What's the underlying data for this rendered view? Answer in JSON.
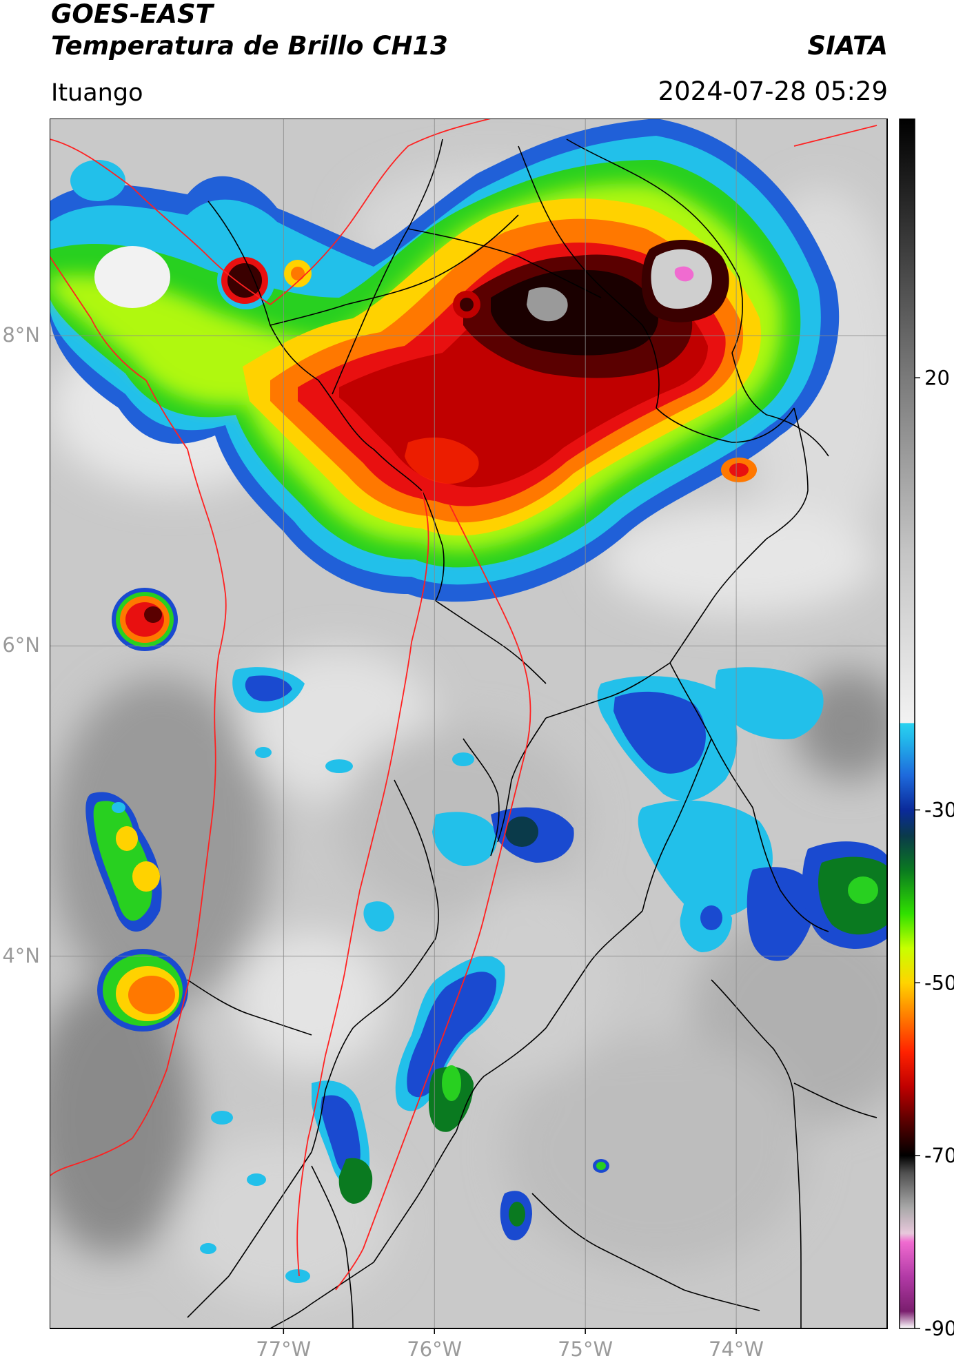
{
  "header": {
    "title_line1": "GOES-EAST",
    "title_line2": "Temperatura de Brillo CH13",
    "brand": "SIATA",
    "location": "Ituango",
    "timestamp": "2024-07-28 05:29"
  },
  "map": {
    "extent": {
      "lon_min": -78.55,
      "lon_max": -73.0,
      "lat_min": 1.6,
      "lat_max": 9.4
    },
    "grid_lons": [
      -77,
      -76,
      -75,
      -74
    ],
    "grid_lats": [
      4,
      6,
      8
    ],
    "lon_labels": [
      "77°W",
      "76°W",
      "75°W",
      "74°W"
    ],
    "lat_labels": [
      "4°N",
      "6°N",
      "8°N"
    ],
    "boundary_colors": {
      "country_and_coast": "#ff2020",
      "departments": "#000000"
    }
  },
  "colorbar": {
    "min": -90,
    "max": 50,
    "tick_values": [
      20,
      -30,
      -50,
      -70,
      -90
    ],
    "tick_labels": [
      "20",
      "-30",
      "-50",
      "-70",
      "-90"
    ],
    "stops": [
      {
        "v": -90,
        "color": "#ffffff"
      },
      {
        "v": -88,
        "color": "#7a1e6e"
      },
      {
        "v": -84,
        "color": "#b23aa6"
      },
      {
        "v": -80,
        "color": "#f06bd0"
      },
      {
        "v": -79,
        "color": "#e8c8dc"
      },
      {
        "v": -76,
        "color": "#a8a8a8"
      },
      {
        "v": -72,
        "color": "#505050"
      },
      {
        "v": -70,
        "color": "#000000"
      },
      {
        "v": -66,
        "color": "#5a0000"
      },
      {
        "v": -62,
        "color": "#c00000"
      },
      {
        "v": -58,
        "color": "#ff2200"
      },
      {
        "v": -54,
        "color": "#ff7a00"
      },
      {
        "v": -50,
        "color": "#ffd400"
      },
      {
        "v": -46,
        "color": "#c8ff00"
      },
      {
        "v": -42,
        "color": "#30e000"
      },
      {
        "v": -37,
        "color": "#0a7a20"
      },
      {
        "v": -33,
        "color": "#0a3a4a"
      },
      {
        "v": -30,
        "color": "#0a2a9a"
      },
      {
        "v": -26,
        "color": "#1e6adc"
      },
      {
        "v": -22,
        "color": "#22b4ea"
      },
      {
        "v": -20,
        "color": "#2ad2f0"
      },
      {
        "v": -19.9,
        "color": "#f2f2f2"
      },
      {
        "v": 0,
        "color": "#c4c4c4"
      },
      {
        "v": 20,
        "color": "#7a7a7a"
      },
      {
        "v": 50,
        "color": "#000000"
      }
    ]
  }
}
